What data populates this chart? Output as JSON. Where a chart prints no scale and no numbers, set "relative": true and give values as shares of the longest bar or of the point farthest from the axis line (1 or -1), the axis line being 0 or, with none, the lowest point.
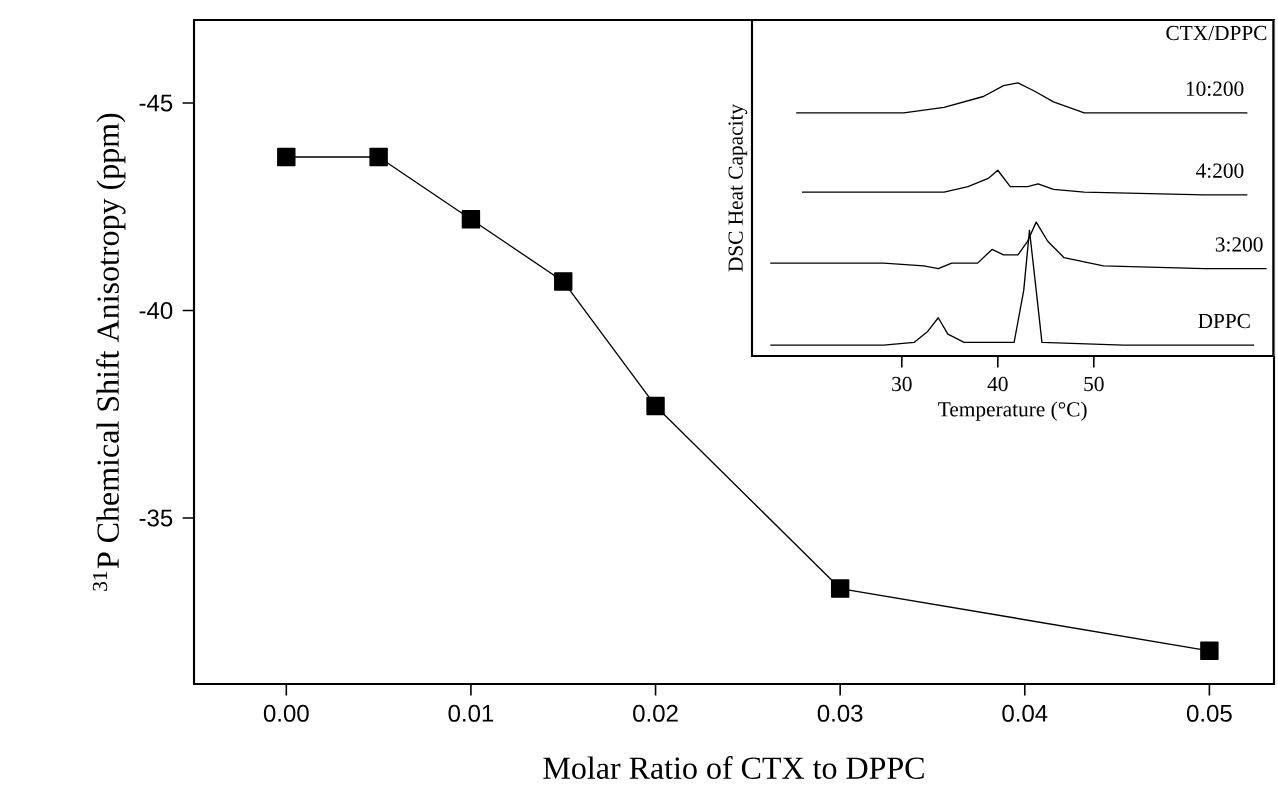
{
  "chart_data": [
    {
      "type": "line",
      "xlabel": "Molar Ratio of CTX to DPPC",
      "ylabel": "$^{31}$P Chemical Shift  Anisotropy (ppm)",
      "x": [
        0.0,
        0.005,
        0.01,
        0.015,
        0.02,
        0.03,
        0.05
      ],
      "series": [
        {
          "color": "#000000",
          "values": [
            -43.7,
            -43.7,
            -42.2,
            -40.7,
            -37.7,
            -33.3,
            -31.8
          ]
        }
      ],
      "xlim": [
        -0.005,
        0.0535
      ],
      "ylim": [
        -31,
        -47
      ],
      "xticks": [
        {
          "value": 0.0,
          "label": "0.00"
        },
        {
          "value": 0.01,
          "label": "0.01"
        },
        {
          "value": 0.02,
          "label": "0.02"
        },
        {
          "value": 0.03,
          "label": "0.03"
        },
        {
          "value": 0.04,
          "label": "0.04"
        },
        {
          "value": 0.05,
          "label": "0.05"
        }
      ],
      "yticks": [
        -45,
        -40,
        -35
      ],
      "marker": "square",
      "line_style": "solid",
      "grid": false,
      "legend": false
    },
    {
      "type": "line",
      "relative": true,
      "xlabel": "Temperature (°C)",
      "ylabel": "DSC Heat Capacity",
      "legend_title": "CTX/DPPC",
      "xlim": [
        14.4,
        68.7
      ],
      "xticks": [
        30,
        40,
        50
      ],
      "tick_labels": "x",
      "legend": false,
      "grid": false,
      "marker": "none",
      "series": [
        {
          "name": "10:200",
          "color": "#000000",
          "x": [
            19.0,
            24.0,
            30.2,
            34.4,
            38.5,
            40.6,
            42.1,
            43.8,
            45.8,
            49.0,
            55.2,
            63.5,
            66.0
          ],
          "values": [
            0.89,
            0.89,
            0.89,
            0.91,
            0.95,
            0.99,
            1.0,
            0.97,
            0.93,
            0.89,
            0.89,
            0.89,
            0.89
          ]
        },
        {
          "name": "4:200",
          "color": "#000000",
          "x": [
            19.6,
            30.2,
            34.4,
            36.9,
            39.0,
            40.0,
            41.3,
            43.1,
            44.2,
            45.8,
            49.0,
            61.5,
            66.0
          ],
          "values": [
            0.6,
            0.6,
            0.6,
            0.62,
            0.65,
            0.68,
            0.62,
            0.62,
            0.63,
            0.61,
            0.6,
            0.59,
            0.59
          ]
        },
        {
          "name": "3:200",
          "color": "#000000",
          "x": [
            16.3,
            28.1,
            32.3,
            33.8,
            35.2,
            37.9,
            39.4,
            40.6,
            42.1,
            43.1,
            44.0,
            45.2,
            46.9,
            51.0,
            61.5,
            68.0
          ],
          "values": [
            0.34,
            0.34,
            0.33,
            0.32,
            0.34,
            0.34,
            0.39,
            0.37,
            0.37,
            0.42,
            0.49,
            0.42,
            0.36,
            0.33,
            0.32,
            0.32
          ]
        },
        {
          "name": "DPPC",
          "color": "#000000",
          "x": [
            16.3,
            28.1,
            31.3,
            32.7,
            33.8,
            34.8,
            36.5,
            41.7,
            42.7,
            43.3,
            44.0,
            44.6,
            53.1,
            66.7
          ],
          "values": [
            0.04,
            0.04,
            0.05,
            0.09,
            0.14,
            0.08,
            0.05,
            0.05,
            0.24,
            0.46,
            0.24,
            0.05,
            0.04,
            0.04
          ]
        }
      ]
    }
  ]
}
